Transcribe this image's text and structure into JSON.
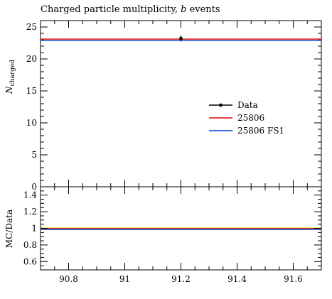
{
  "chart_data": [
    {
      "type": "scatter",
      "title": "Charged particle multiplicity, b events",
      "title_prefix": "Charged particle multiplicity, ",
      "title_italic": "b",
      "title_suffix": " events",
      "ylabel_main": "N",
      "ylabel_sub": "charged",
      "ylim": [
        0,
        26
      ],
      "xlim": [
        90.7,
        91.7
      ],
      "yticks": [
        0,
        5,
        10,
        15,
        20,
        25
      ],
      "grid": false,
      "legend_position": "right-middle",
      "series": [
        {
          "name": "Data",
          "color": "#000000",
          "style": "points",
          "points": [
            {
              "x": 91.2,
              "y": 23.2,
              "yerr": 0.25
            }
          ]
        },
        {
          "name": "25806",
          "color": "#e6261f",
          "style": "line",
          "y": 23.1
        },
        {
          "name": "25806 FS1",
          "color": "#2a5bd7",
          "style": "line",
          "y": 22.9
        }
      ]
    },
    {
      "type": "line",
      "ylabel": "MC/Data",
      "ylim": [
        0.5,
        1.5
      ],
      "xlim": [
        90.7,
        91.7
      ],
      "yticks": [
        0.6,
        0.8,
        1,
        1.2,
        1.4
      ],
      "ytick_labels": [
        "0.6",
        "0.8",
        "1",
        "1.2",
        "1.4"
      ],
      "xticks": [
        90.8,
        91,
        91.2,
        91.4,
        91.6
      ],
      "xtick_labels": [
        "90.8",
        "91",
        "91.2",
        "91.4",
        "91.6"
      ],
      "grid": false,
      "band": {
        "lo": 0.99,
        "hi": 1.012,
        "color": "#f5e94a"
      },
      "series": [
        {
          "name": "Data",
          "color": "#000000",
          "y": 1.0
        },
        {
          "name": "25806",
          "color": "#e6261f",
          "y": 0.996
        },
        {
          "name": "25806 FS1",
          "color": "#2a5bd7",
          "y": 0.987
        }
      ]
    }
  ]
}
